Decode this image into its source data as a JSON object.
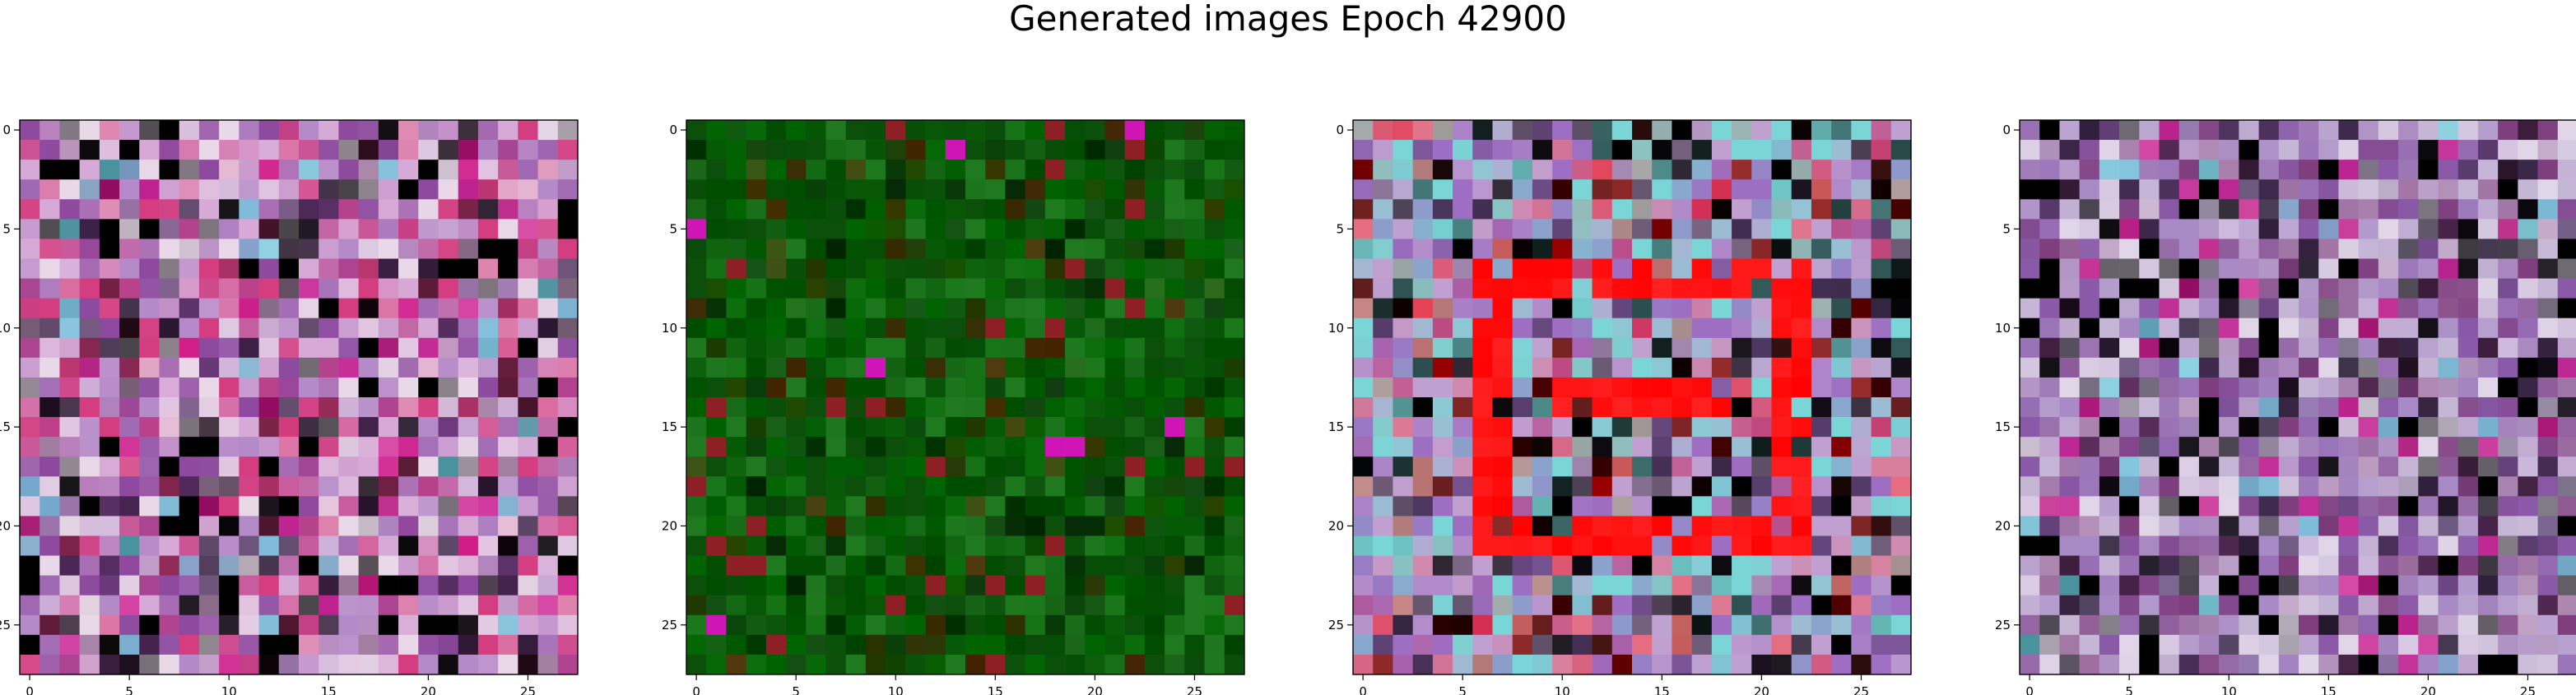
{
  "figure": {
    "title": "Generated images Epoch 42900"
  },
  "chart_data": [
    {
      "type": "heatmap",
      "panel": 1,
      "grid_size": [
        28,
        28
      ],
      "x_ticks": [
        0,
        5,
        10,
        15,
        20,
        25
      ],
      "y_ticks": [
        0,
        5,
        10,
        15,
        20,
        25
      ],
      "xlim": [
        -0.5,
        27.5
      ],
      "ylim": [
        27.5,
        -0.5
      ],
      "grid": false,
      "dominant_colors": [
        "#d7a9d6",
        "#b58ac8",
        "#e8d8e8",
        "#8d4a9f",
        "#000000",
        "#d43d7f"
      ],
      "seed": 11
    },
    {
      "type": "heatmap",
      "panel": 2,
      "grid_size": [
        28,
        28
      ],
      "x_ticks": [
        0,
        5,
        10,
        15,
        20,
        25
      ],
      "y_ticks": [
        0,
        5,
        10,
        15,
        20,
        25
      ],
      "xlim": [
        -0.5,
        27.5
      ],
      "ylim": [
        27.5,
        -0.5
      ],
      "grid": false,
      "dominant_colors": [
        "#006400",
        "#0b4f0b",
        "#004d00",
        "#1f7a1f",
        "#000000",
        "#7a0000"
      ],
      "seed": 27
    },
    {
      "type": "heatmap",
      "panel": 3,
      "grid_size": [
        28,
        28
      ],
      "x_ticks": [
        0,
        5,
        10,
        15,
        20,
        25
      ],
      "y_ticks": [
        0,
        5,
        10,
        15,
        20,
        25
      ],
      "xlim": [
        -0.5,
        27.5
      ],
      "ylim": [
        27.5,
        -0.5
      ],
      "grid": false,
      "dominant_colors": [
        "#ff0000",
        "#ff4a4a",
        "#c0a0d0",
        "#9d6ec2",
        "#000000",
        "#7ad6d6"
      ],
      "seed": 43
    },
    {
      "type": "heatmap",
      "panel": 4,
      "grid_size": [
        28,
        28
      ],
      "x_ticks": [
        0,
        5,
        10,
        15,
        20,
        25
      ],
      "y_ticks": [
        0,
        5,
        10,
        15,
        20,
        25
      ],
      "xlim": [
        -0.5,
        27.5
      ],
      "ylim": [
        27.5,
        -0.5
      ],
      "grid": false,
      "dominant_colors": [
        "#c6b6d6",
        "#a88bc6",
        "#8a5aa8",
        "#e1d6e8",
        "#000000",
        "#7f3f7f"
      ],
      "seed": 59
    }
  ]
}
